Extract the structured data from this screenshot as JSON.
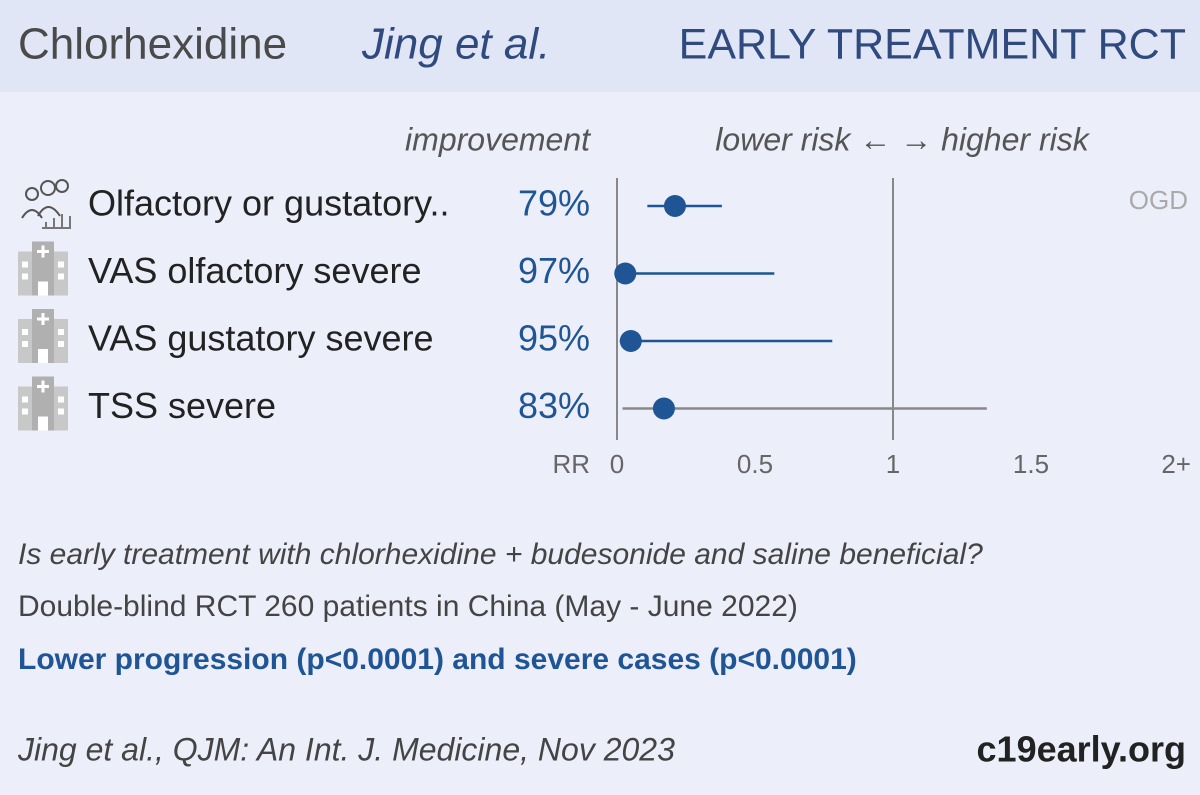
{
  "header": {
    "drug": "Chlorhexidine",
    "study": "Jing et al.",
    "label": "EARLY TREATMENT RCT"
  },
  "chart_data": {
    "type": "forest",
    "column_header": "improvement",
    "direction_label": "lower risk ← → higher risk",
    "x_label": "RR",
    "annotation": "OGD",
    "categories": [
      "Olfactory or gustatory..",
      "VAS olfactory severe",
      "VAS gustatory severe",
      "TSS severe"
    ],
    "values": [
      0.21,
      0.03,
      0.05,
      0.17
    ],
    "improvement_labels": [
      "79%",
      "97%",
      "95%",
      "83%"
    ],
    "ci_low": [
      0.11,
      0.01,
      0.01,
      0.02
    ],
    "ci_high": [
      0.38,
      0.57,
      0.78,
      1.34
    ],
    "color": "#1f5594",
    "ci_colors": [
      "#1f5594",
      "#1f5594",
      "#1f5594",
      "#888888"
    ],
    "xlim": [
      0,
      2
    ],
    "xticks": [
      0,
      0.5,
      1,
      1.5,
      {
        "value": 2,
        "label": "2+"
      }
    ],
    "reference_lines": [
      0,
      1
    ]
  },
  "question": "Is early treatment with chlorhexidine + budesonide and saline beneficial?",
  "details": "Double-blind RCT 260 patients in China (May - June 2022)",
  "conclusion": "Lower progression (p<0.0001) and severe cases (p<0.0001)",
  "citation": "Jing et al., QJM: An Int. J. Medicine, Nov 2023",
  "brand": "c19early.org"
}
